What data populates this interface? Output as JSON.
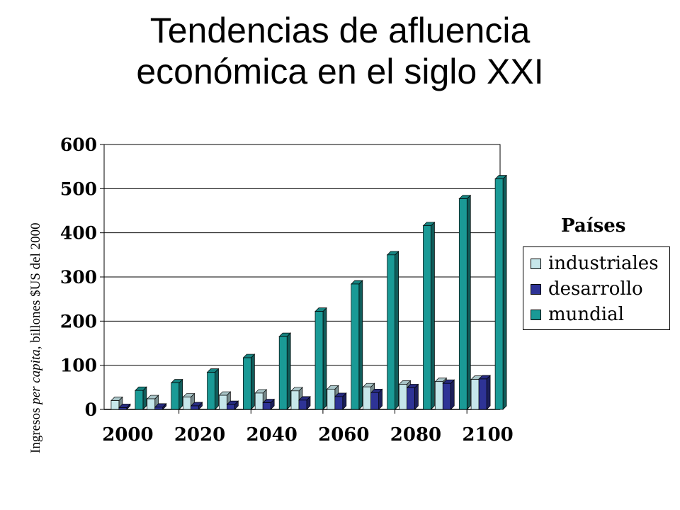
{
  "title_line1": "Tendencias de afluencia",
  "title_line2": "económica en el siglo XXI",
  "chart_data": {
    "type": "bar",
    "title": "Tendencias de afluencia económica en el siglo XXI",
    "ylabel_parts": [
      "Ingresos ",
      "per capita",
      ", billones $US del 2000"
    ],
    "xlabel": "",
    "ylim": [
      0,
      600
    ],
    "yticks": [
      0,
      100,
      200,
      300,
      400,
      500,
      600
    ],
    "x_tick_labels": [
      "2000",
      "2020",
      "2040",
      "2060",
      "2080",
      "2100"
    ],
    "categories": [
      2000,
      2010,
      2020,
      2030,
      2040,
      2050,
      2060,
      2070,
      2080,
      2090,
      2100
    ],
    "legend_title": "Países",
    "legend_position": "right",
    "grid": true,
    "series": [
      {
        "name": "industriales",
        "color": "#C6E6EA",
        "values": [
          20,
          24,
          28,
          32,
          37,
          42,
          46,
          51,
          57,
          63,
          68
        ]
      },
      {
        "name": "desarrollo",
        "color": "#2E3396",
        "values": [
          4,
          5,
          8,
          11,
          15,
          21,
          29,
          38,
          49,
          59,
          69
        ]
      },
      {
        "name": "mundial",
        "color": "#1A9A96",
        "values": [
          43,
          60,
          84,
          117,
          165,
          222,
          284,
          350,
          416,
          477,
          522
        ]
      }
    ]
  }
}
